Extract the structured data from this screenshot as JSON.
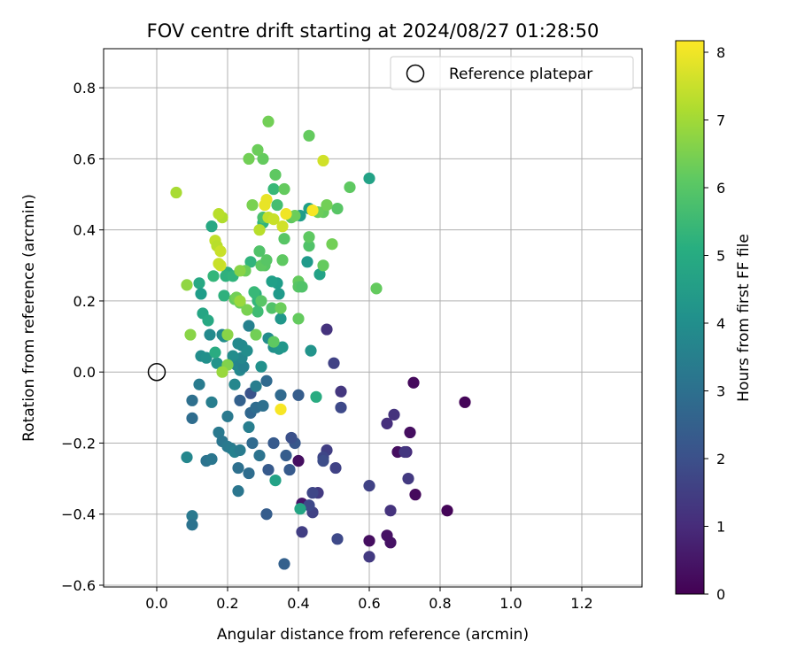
{
  "chart_data": {
    "type": "scatter",
    "title": "FOV centre drift starting at 2024/08/27 01:28:50",
    "xlabel": "Angular distance from reference (arcmin)",
    "ylabel": "Rotation from reference (arcmin)",
    "xlim": [
      -0.15,
      1.37
    ],
    "ylim": [
      -0.605,
      0.91
    ],
    "xticks": [
      "0.0",
      "0.2",
      "0.4",
      "0.6",
      "0.8",
      "1.0",
      "1.2"
    ],
    "xtick_values": [
      0.0,
      0.2,
      0.4,
      0.6,
      0.8,
      1.0,
      1.2
    ],
    "yticks": [
      "−0.6",
      "−0.4",
      "−0.2",
      "0.0",
      "0.2",
      "0.4",
      "0.6",
      "0.8"
    ],
    "ytick_values": [
      -0.6,
      -0.4,
      -0.2,
      0.0,
      0.2,
      0.4,
      0.6,
      0.8
    ],
    "grid": true,
    "legend": {
      "position": "top-right",
      "entry": "Reference platepar"
    },
    "reference_point": {
      "x": 0.0,
      "y": 0.0
    },
    "colorbar": {
      "label": "Hours from first FF file",
      "range": [
        0,
        8.17
      ],
      "ticks": [
        "0",
        "1",
        "2",
        "3",
        "4",
        "5",
        "6",
        "7",
        "8"
      ],
      "tick_values": [
        0,
        1,
        2,
        3,
        4,
        5,
        6,
        7,
        8
      ],
      "colormap": "viridis"
    },
    "points": [
      [
        0.87,
        -0.085,
        0.1
      ],
      [
        0.82,
        -0.39,
        0.1
      ],
      [
        0.73,
        -0.345,
        0.2
      ],
      [
        0.725,
        -0.03,
        0.2
      ],
      [
        0.715,
        -0.17,
        0.3
      ],
      [
        0.68,
        -0.225,
        0.3
      ],
      [
        0.66,
        -0.48,
        0.4
      ],
      [
        0.65,
        -0.46,
        0.4
      ],
      [
        0.6,
        -0.475,
        0.3
      ],
      [
        0.4,
        -0.25,
        0.3
      ],
      [
        0.41,
        -0.37,
        0.5
      ],
      [
        0.67,
        -0.12,
        1.2
      ],
      [
        0.65,
        -0.145,
        1.1
      ],
      [
        0.705,
        -0.225,
        1.0
      ],
      [
        0.7,
        -0.225,
        1.3
      ],
      [
        0.71,
        -0.3,
        1.4
      ],
      [
        0.66,
        -0.39,
        1.2
      ],
      [
        0.6,
        -0.52,
        1.4
      ],
      [
        0.6,
        -0.32,
        1.6
      ],
      [
        0.52,
        -0.055,
        1.3
      ],
      [
        0.48,
        0.12,
        1.2
      ],
      [
        0.5,
        0.025,
        1.6
      ],
      [
        0.52,
        -0.1,
        1.8
      ],
      [
        0.48,
        -0.22,
        1.5
      ],
      [
        0.47,
        -0.24,
        1.7
      ],
      [
        0.505,
        -0.27,
        1.6
      ],
      [
        0.455,
        -0.34,
        1.4
      ],
      [
        0.44,
        -0.34,
        1.7
      ],
      [
        0.44,
        -0.395,
        1.6
      ],
      [
        0.43,
        -0.375,
        1.8
      ],
      [
        0.41,
        -0.45,
        1.5
      ],
      [
        0.51,
        -0.47,
        1.8
      ],
      [
        0.47,
        -0.25,
        1.9
      ],
      [
        0.4,
        -0.065,
        2.4
      ],
      [
        0.39,
        -0.2,
        2.2
      ],
      [
        0.38,
        -0.185,
        2.0
      ],
      [
        0.375,
        -0.275,
        2.3
      ],
      [
        0.365,
        -0.235,
        2.4
      ],
      [
        0.33,
        -0.2,
        2.3
      ],
      [
        0.315,
        -0.275,
        2.3
      ],
      [
        0.31,
        -0.4,
        2.4
      ],
      [
        0.36,
        -0.54,
        2.5
      ],
      [
        0.35,
        -0.065,
        2.8
      ],
      [
        0.31,
        -0.025,
        2.8
      ],
      [
        0.265,
        -0.06,
        2.1
      ],
      [
        0.265,
        -0.115,
        2.7
      ],
      [
        0.28,
        -0.1,
        2.9
      ],
      [
        0.235,
        -0.08,
        2.5
      ],
      [
        0.3,
        -0.095,
        3.0
      ],
      [
        0.26,
        -0.285,
        2.9
      ],
      [
        0.29,
        -0.235,
        3.1
      ],
      [
        0.27,
        -0.2,
        2.8
      ],
      [
        0.23,
        -0.27,
        3.0
      ],
      [
        0.23,
        -0.335,
        3.2
      ],
      [
        0.1,
        -0.08,
        3.0
      ],
      [
        0.1,
        -0.13,
        2.9
      ],
      [
        0.1,
        -0.405,
        3.3
      ],
      [
        0.1,
        -0.43,
        3.1
      ],
      [
        0.14,
        -0.25,
        3.1
      ],
      [
        0.155,
        -0.245,
        3.2
      ],
      [
        0.175,
        -0.17,
        3.3
      ],
      [
        0.185,
        -0.195,
        3.2
      ],
      [
        0.2,
        -0.21,
        3.3
      ],
      [
        0.21,
        -0.215,
        3.4
      ],
      [
        0.22,
        -0.225,
        3.6
      ],
      [
        0.235,
        -0.22,
        3.4
      ],
      [
        0.26,
        -0.155,
        3.5
      ],
      [
        0.28,
        -0.04,
        3.5
      ],
      [
        0.2,
        -0.125,
        3.3
      ],
      [
        0.155,
        -0.085,
        3.5
      ],
      [
        0.12,
        -0.035,
        3.4
      ],
      [
        0.085,
        -0.24,
        3.8
      ],
      [
        0.26,
        0.13,
        3.6
      ],
      [
        0.22,
        -0.035,
        3.8
      ],
      [
        0.225,
        0.02,
        3.7
      ],
      [
        0.235,
        0.005,
        3.8
      ],
      [
        0.245,
        0.015,
        3.6
      ],
      [
        0.24,
        0.04,
        3.8
      ],
      [
        0.215,
        0.045,
        4.0
      ],
      [
        0.24,
        0.075,
        3.9
      ],
      [
        0.255,
        0.06,
        4.0
      ],
      [
        0.23,
        0.08,
        3.9
      ],
      [
        0.15,
        0.105,
        3.9
      ],
      [
        0.185,
        0.105,
        3.8
      ],
      [
        0.19,
        0.1,
        4.0
      ],
      [
        0.125,
        0.045,
        4.0
      ],
      [
        0.14,
        0.04,
        4.1
      ],
      [
        0.17,
        0.025,
        4.2
      ],
      [
        0.295,
        0.015,
        4.1
      ],
      [
        0.315,
        0.095,
        4.0
      ],
      [
        0.33,
        0.07,
        4.1
      ],
      [
        0.345,
        0.065,
        4.2
      ],
      [
        0.355,
        0.07,
        4.3
      ],
      [
        0.435,
        0.06,
        4.2
      ],
      [
        0.35,
        0.15,
        4.3
      ],
      [
        0.34,
        0.25,
        4.5
      ],
      [
        0.325,
        0.255,
        4.6
      ],
      [
        0.345,
        0.22,
        4.4
      ],
      [
        0.425,
        0.31,
        4.4
      ],
      [
        0.46,
        0.275,
        4.7
      ],
      [
        0.43,
        0.46,
        4.6
      ],
      [
        0.405,
        0.44,
        4.5
      ],
      [
        0.335,
        -0.305,
        4.7
      ],
      [
        0.405,
        -0.385,
        4.8
      ],
      [
        0.45,
        -0.07,
        5.0
      ],
      [
        0.6,
        0.545,
        4.7
      ],
      [
        0.155,
        0.41,
        4.9
      ],
      [
        0.12,
        0.25,
        4.9
      ],
      [
        0.125,
        0.22,
        4.5
      ],
      [
        0.13,
        0.165,
        4.8
      ],
      [
        0.145,
        0.145,
        4.9
      ],
      [
        0.165,
        0.055,
        5.0
      ],
      [
        0.19,
        0.215,
        5.2
      ],
      [
        0.2,
        0.28,
        5.0
      ],
      [
        0.195,
        0.27,
        5.2
      ],
      [
        0.215,
        0.27,
        5.3
      ],
      [
        0.16,
        0.27,
        5.4
      ],
      [
        0.265,
        0.31,
        5.3
      ],
      [
        0.28,
        0.22,
        5.1
      ],
      [
        0.285,
        0.2,
        5.4
      ],
      [
        0.275,
        0.225,
        5.5
      ],
      [
        0.285,
        0.17,
        5.6
      ],
      [
        0.3,
        0.42,
        5.3
      ],
      [
        0.33,
        0.515,
        5.5
      ],
      [
        0.34,
        0.47,
        5.7
      ],
      [
        0.3,
        0.435,
        5.8
      ],
      [
        0.29,
        0.34,
        5.9
      ],
      [
        0.305,
        0.3,
        6.0
      ],
      [
        0.295,
        0.3,
        6.1
      ],
      [
        0.31,
        0.315,
        6.0
      ],
      [
        0.355,
        0.315,
        6.1
      ],
      [
        0.325,
        0.18,
        5.9
      ],
      [
        0.295,
        0.2,
        6.0
      ],
      [
        0.33,
        0.085,
        6.1
      ],
      [
        0.35,
        0.18,
        6.3
      ],
      [
        0.4,
        0.15,
        6.2
      ],
      [
        0.4,
        0.255,
        6.2
      ],
      [
        0.4,
        0.24,
        6.0
      ],
      [
        0.41,
        0.24,
        5.9
      ],
      [
        0.43,
        0.355,
        5.9
      ],
      [
        0.43,
        0.38,
        6.1
      ],
      [
        0.36,
        0.375,
        6.0
      ],
      [
        0.36,
        0.515,
        6.2
      ],
      [
        0.335,
        0.555,
        6.1
      ],
      [
        0.3,
        0.6,
        6.2
      ],
      [
        0.315,
        0.705,
        6.4
      ],
      [
        0.285,
        0.625,
        6.3
      ],
      [
        0.26,
        0.6,
        6.4
      ],
      [
        0.43,
        0.665,
        6.2
      ],
      [
        0.47,
        0.3,
        6.2
      ],
      [
        0.495,
        0.36,
        6.4
      ],
      [
        0.51,
        0.46,
        6.0
      ],
      [
        0.47,
        0.45,
        6.2
      ],
      [
        0.48,
        0.47,
        6.4
      ],
      [
        0.545,
        0.52,
        6.1
      ],
      [
        0.62,
        0.235,
        6.2
      ],
      [
        0.455,
        0.45,
        6.3
      ],
      [
        0.38,
        0.435,
        6.1
      ],
      [
        0.39,
        0.44,
        6.3
      ],
      [
        0.27,
        0.47,
        6.5
      ],
      [
        0.25,
        0.285,
        6.3
      ],
      [
        0.22,
        0.205,
        6.2
      ],
      [
        0.225,
        0.21,
        6.4
      ],
      [
        0.235,
        0.195,
        6.3
      ],
      [
        0.255,
        0.175,
        6.5
      ],
      [
        0.28,
        0.105,
        6.4
      ],
      [
        0.2,
        0.105,
        6.7
      ],
      [
        0.085,
        0.245,
        6.8
      ],
      [
        0.095,
        0.105,
        6.7
      ],
      [
        0.235,
        0.285,
        6.7
      ],
      [
        0.235,
        0.2,
        6.9
      ],
      [
        0.2,
        0.02,
        6.6
      ],
      [
        0.185,
        0.0,
        6.9
      ],
      [
        0.055,
        0.505,
        7.1
      ],
      [
        0.185,
        0.435,
        7.2
      ],
      [
        0.175,
        0.445,
        7.3
      ],
      [
        0.165,
        0.37,
        7.4
      ],
      [
        0.17,
        0.355,
        7.3
      ],
      [
        0.18,
        0.34,
        7.5
      ],
      [
        0.18,
        0.3,
        7.6
      ],
      [
        0.175,
        0.305,
        7.5
      ],
      [
        0.29,
        0.4,
        7.3
      ],
      [
        0.355,
        0.41,
        7.6
      ],
      [
        0.315,
        0.435,
        7.4
      ],
      [
        0.33,
        0.43,
        7.5
      ],
      [
        0.31,
        0.485,
        7.9
      ],
      [
        0.305,
        0.47,
        7.9
      ],
      [
        0.365,
        0.445,
        8.0
      ],
      [
        0.44,
        0.455,
        8.1
      ],
      [
        0.47,
        0.595,
        7.6
      ],
      [
        0.35,
        -0.105,
        8.1
      ]
    ]
  }
}
